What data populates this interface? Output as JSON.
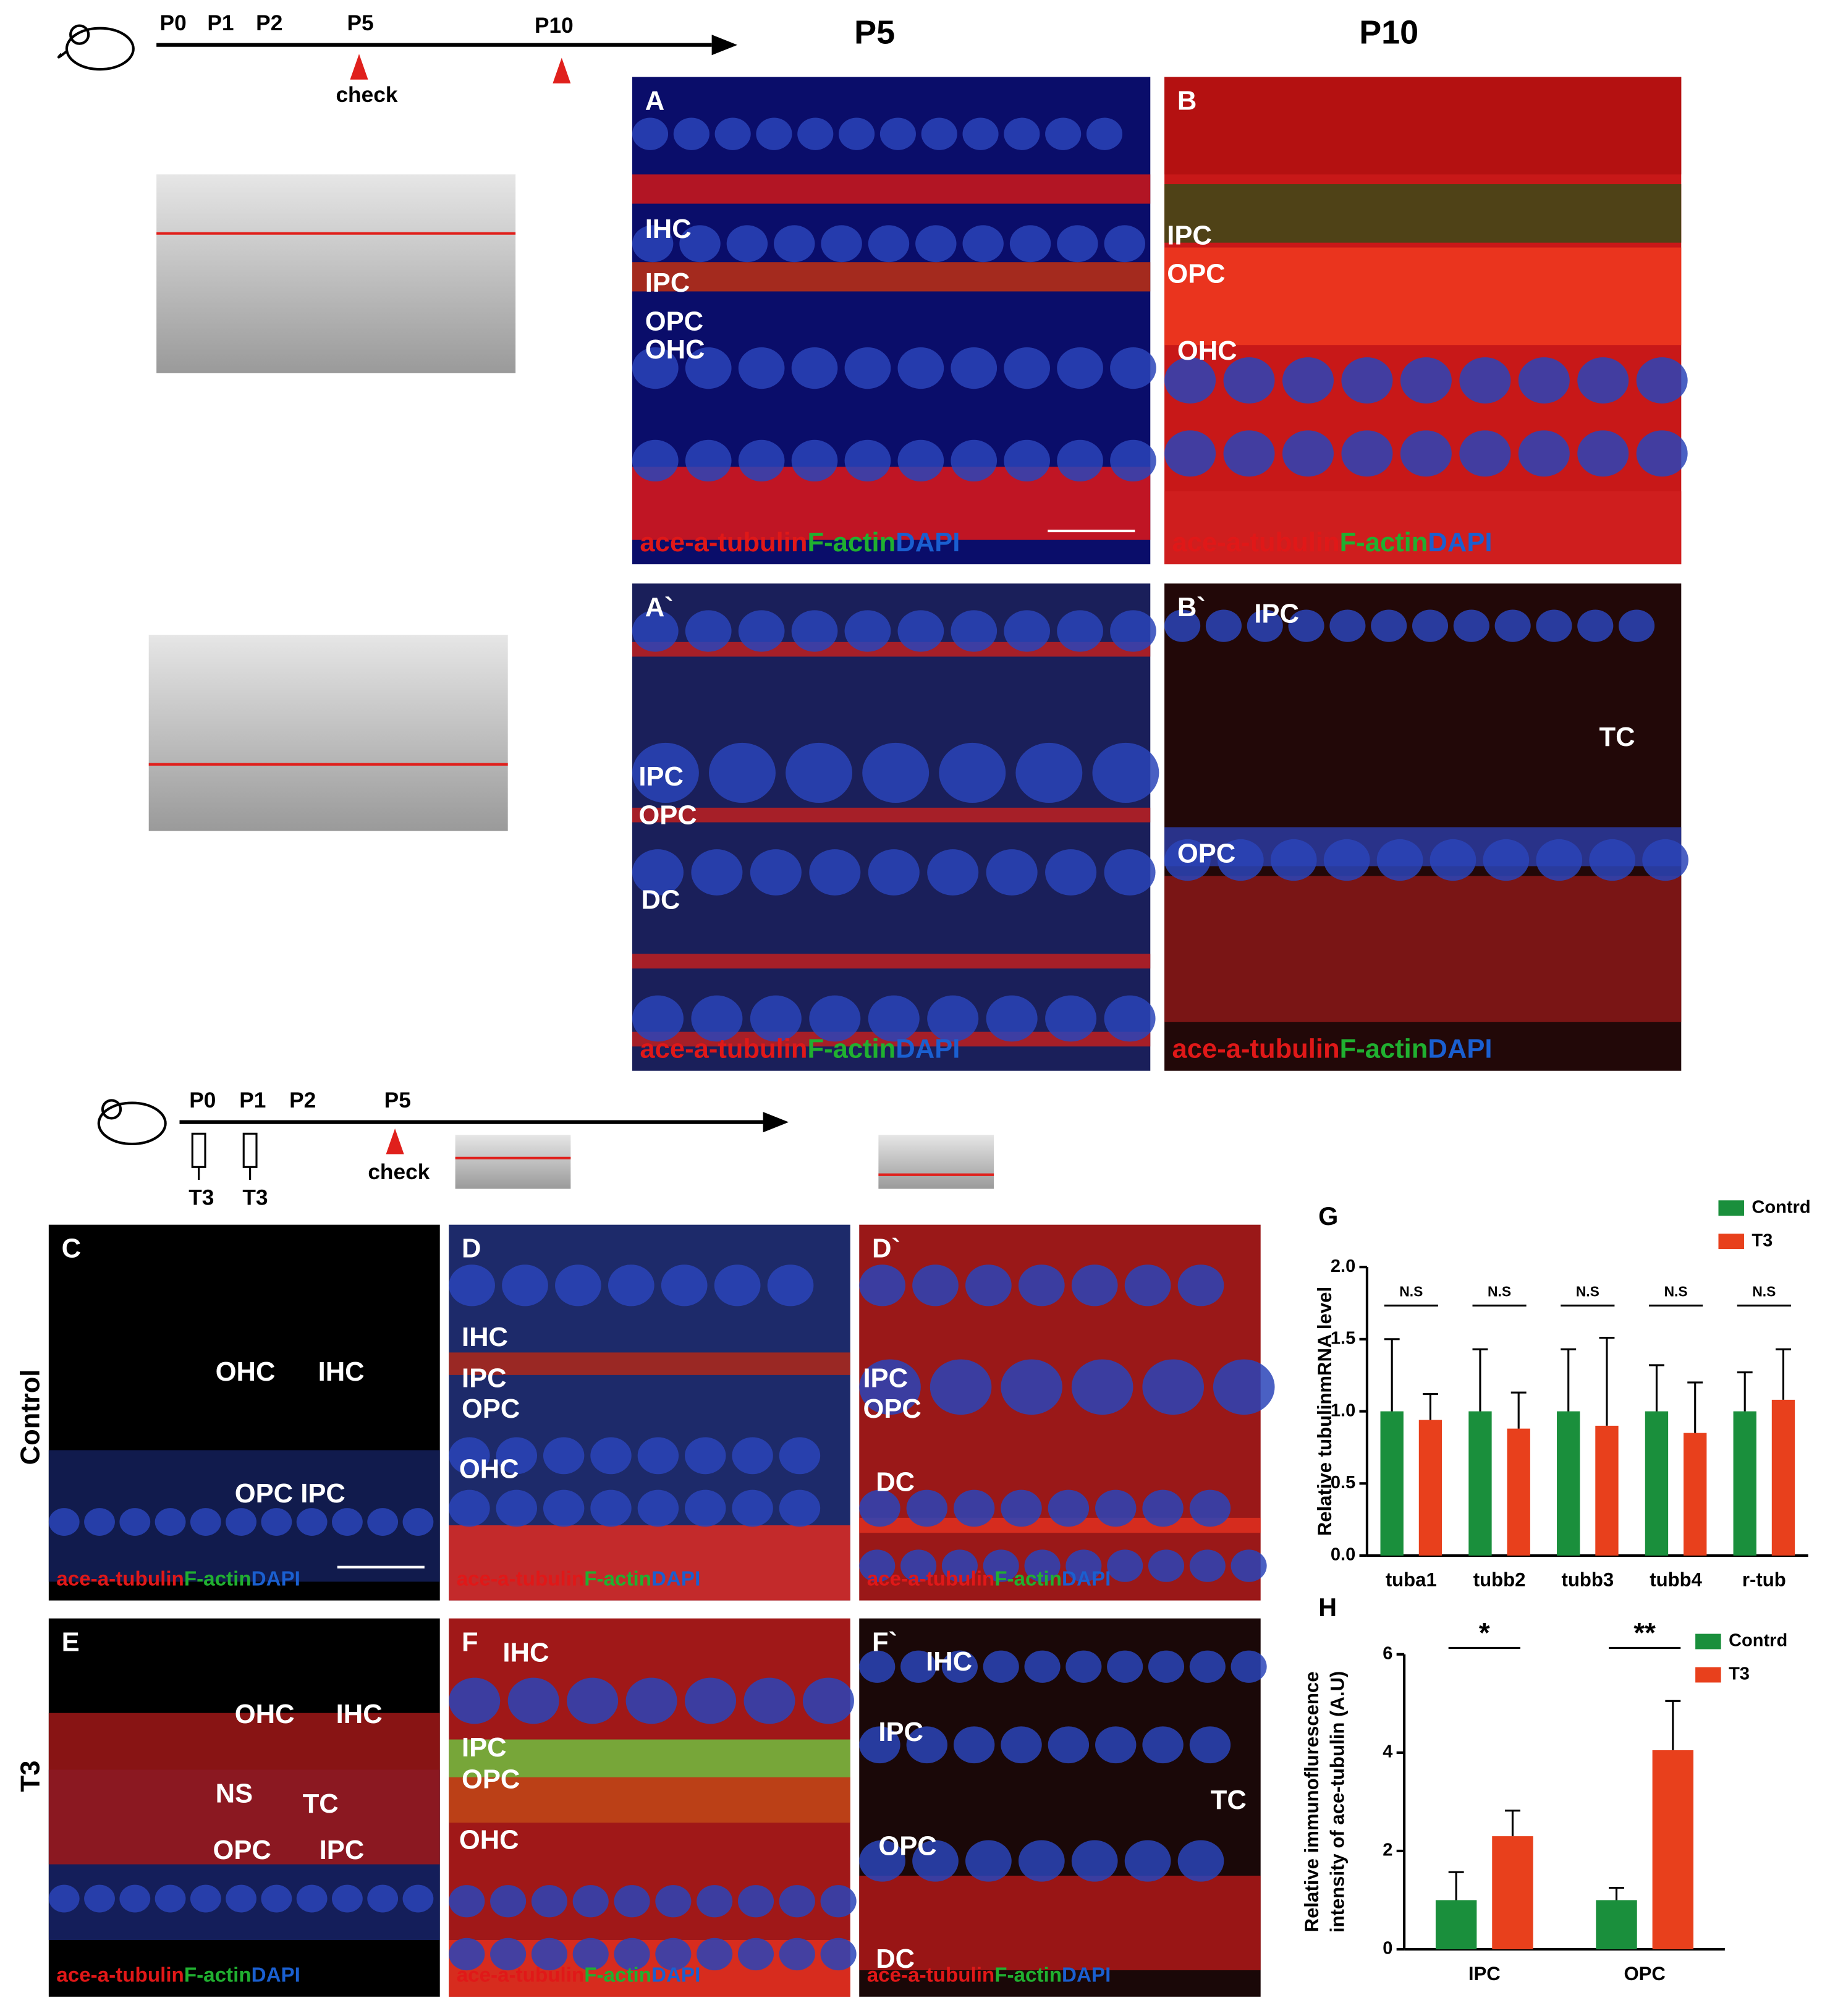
{
  "timeline_top": {
    "labels": [
      "P0",
      "P1",
      "P2",
      "P5",
      "P10"
    ],
    "check": "check"
  },
  "column_headers": [
    "P5",
    "P10"
  ],
  "timeline_bottom": {
    "labels": [
      "P0",
      "P1",
      "P2",
      "P5"
    ],
    "check": "check",
    "injections": [
      "T3",
      "T3"
    ]
  },
  "row_labels": [
    "Control",
    "T3"
  ],
  "stain_legend": [
    "ace-a-tubulin",
    "F-actin",
    "DAPI"
  ],
  "panels": [
    {
      "letter": "A",
      "cell_labels": [
        "IHC",
        "IPC",
        "OPC",
        "OHC"
      ]
    },
    {
      "letter": "B",
      "cell_labels": [
        "IPC",
        "OPC",
        "OHC"
      ]
    },
    {
      "letter": "A`",
      "cell_labels": [
        "IPC",
        "OPC",
        "DC"
      ]
    },
    {
      "letter": "B`",
      "cell_labels": [
        "IPC",
        "TC",
        "OPC"
      ]
    },
    {
      "letter": "C",
      "cell_labels": [
        "OHC",
        "IHC",
        "OPC IPC"
      ]
    },
    {
      "letter": "D",
      "cell_labels": [
        "IHC",
        "IPC",
        "OPC",
        "OHC"
      ]
    },
    {
      "letter": "D`",
      "cell_labels": [
        "IPC",
        "OPC",
        "DC"
      ]
    },
    {
      "letter": "E",
      "cell_labels": [
        "OHC",
        "IHC",
        "NS",
        "TC",
        "OPC",
        "IPC"
      ]
    },
    {
      "letter": "F",
      "cell_labels": [
        "IHC",
        "IPC",
        "OPC",
        "OHC"
      ]
    },
    {
      "letter": "F`",
      "cell_labels": [
        "IHC",
        "IPC",
        "TC",
        "OPC",
        "DC"
      ]
    }
  ],
  "chart_data": [
    {
      "type": "bar",
      "panel": "G",
      "ylabel": [
        "Relative tubulinmRNA level"
      ],
      "categories": [
        "tuba1",
        "tubb2",
        "tubb3",
        "tubb4",
        "r-tub"
      ],
      "series": [
        {
          "name": "Contrd",
          "color": "#1a8f3c",
          "values": [
            1.0,
            1.0,
            1.0,
            1.0,
            1.0
          ],
          "errors": [
            0.5,
            0.43,
            0.43,
            0.32,
            0.27
          ]
        },
        {
          "name": "T3",
          "color": "#e8401c",
          "values": [
            0.94,
            0.88,
            0.9,
            0.85,
            1.08
          ],
          "errors": [
            0.18,
            0.25,
            0.61,
            0.35,
            0.35
          ]
        }
      ],
      "annotations": [
        "N.S",
        "N.S",
        "N.S",
        "N.S",
        "N.S"
      ],
      "ylim": [
        0,
        2
      ],
      "yticks": [
        {
          "value": 0,
          "label": "0.0"
        },
        {
          "value": 0.5,
          "label": "0.5"
        },
        {
          "value": 1,
          "label": "1.0"
        },
        {
          "value": 1.5,
          "label": "1.5"
        },
        {
          "value": 2,
          "label": "2.0"
        }
      ]
    },
    {
      "type": "bar",
      "panel": "H",
      "ylabel": [
        "Relative immunoflurescence",
        "intensity of ace-tubulin (A.U)"
      ],
      "categories": [
        "IPC",
        "OPC"
      ],
      "series": [
        {
          "name": "Contrd",
          "color": "#1a8f3c",
          "values": [
            1.0,
            1.0
          ],
          "errors": [
            0.57,
            0.25
          ]
        },
        {
          "name": "T3",
          "color": "#e8401c",
          "values": [
            2.3,
            4.05
          ],
          "errors": [
            0.52,
            1.0
          ]
        }
      ],
      "annotations": [
        "*",
        "**"
      ],
      "ylim": [
        0,
        6
      ],
      "yticks": [
        0,
        2,
        4,
        6
      ]
    }
  ]
}
